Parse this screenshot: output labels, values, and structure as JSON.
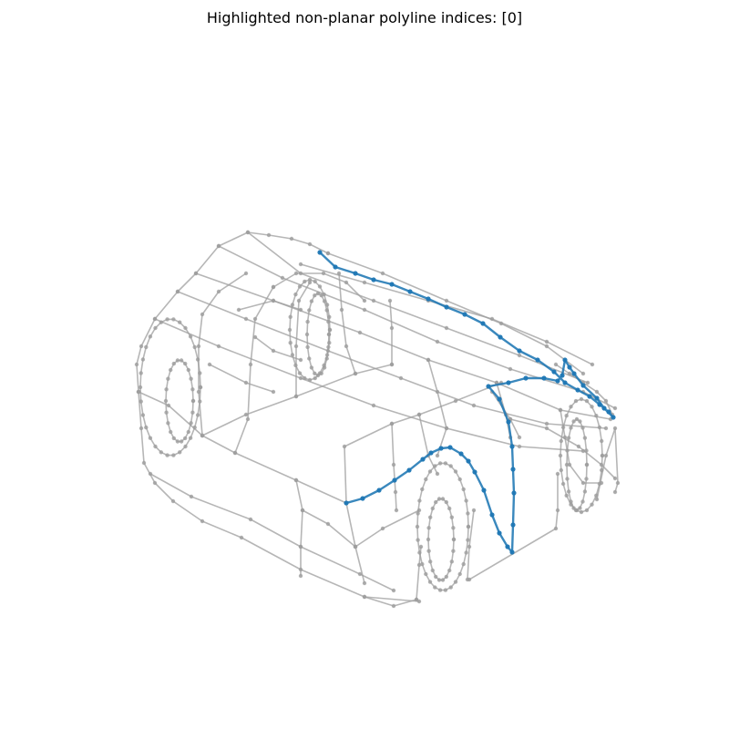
{
  "title": "Highlighted non-planar polyline indices: [0]",
  "colors": {
    "wire": "#9e9e9e",
    "highlight": "#1f77b4",
    "background": "#ffffff"
  },
  "highlighted_indices": [
    0
  ]
}
